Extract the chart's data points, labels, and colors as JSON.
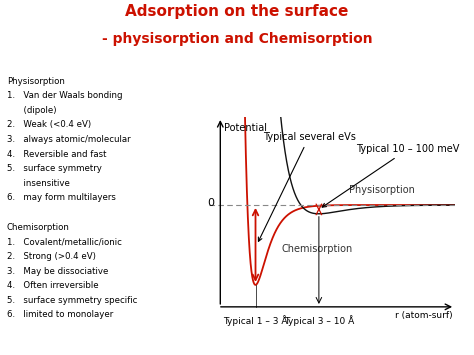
{
  "title_line1": "Adsorption on the surface",
  "title_line2": "- physisorption and Chemisorption",
  "title_color": "#cc1100",
  "title_fontsize": 11,
  "bg_color": "#ffffff",
  "annotation_potential": "Potential",
  "annotation_0": "0",
  "annotation_r": "r (atom-surf)",
  "annotation_physi": "Physisorption",
  "annotation_chemi": "Chemisorption",
  "ann_several_eVs": "Typical several eVs",
  "ann_10_100": "Typical 10 – 100 meV",
  "ann_1_3": "Typical 1 – 3 Å",
  "ann_3_10": "Typical 3 – 10 Å",
  "chemi_color": "#cc1100",
  "physi_color": "#111111",
  "zero_line_color": "#888888",
  "axis_color": "#000000",
  "left_lines": [
    [
      "Physisorption",
      false
    ],
    [
      "1.   Van der Waals bonding",
      false
    ],
    [
      "      (dipole)",
      false
    ],
    [
      "2.   Weak (<0.4 eV)",
      false
    ],
    [
      "3.   always atomic/molecular",
      false
    ],
    [
      "4.   Reversible and fast",
      false
    ],
    [
      "5.   surface symmetry",
      false
    ],
    [
      "      insensitive",
      false
    ],
    [
      "6.   may form multilayers",
      false
    ],
    [
      "",
      false
    ],
    [
      "Chemisorption",
      false
    ],
    [
      "1.   Covalent/metallic/ionic",
      false
    ],
    [
      "2.   Strong (>0.4 eV)",
      false
    ],
    [
      "3.   May be dissociative",
      false
    ],
    [
      "4.   Often irreversible",
      false
    ],
    [
      "5.   surface symmetry specific",
      false
    ],
    [
      "6.   limited to monolayer",
      false
    ]
  ]
}
